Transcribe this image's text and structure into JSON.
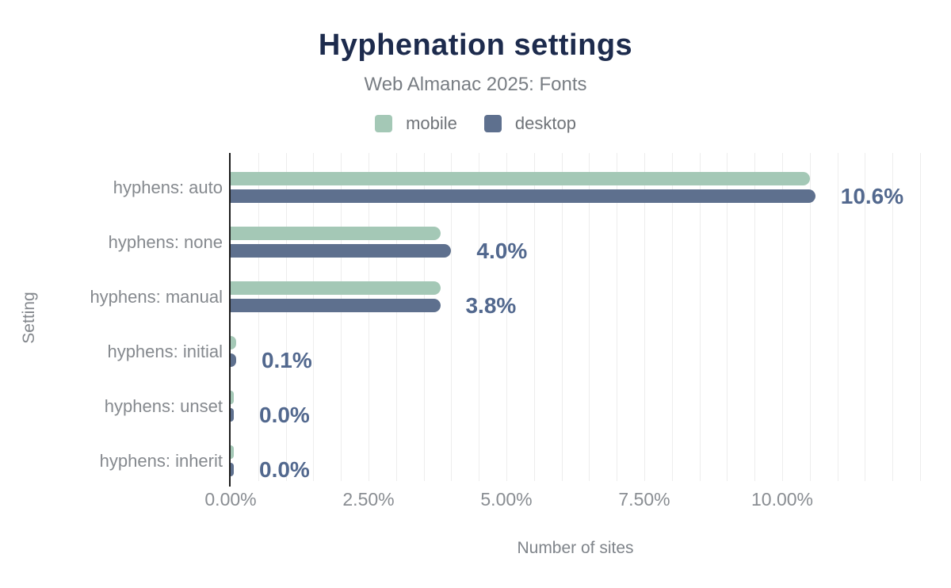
{
  "chart_data": {
    "type": "bar",
    "orientation": "horizontal",
    "title": "Hyphenation settings",
    "subtitle": "Web Almanac 2025: Fonts",
    "categories": [
      "hyphens: auto",
      "hyphens: none",
      "hyphens: manual",
      "hyphens: initial",
      "hyphens: unset",
      "hyphens: inherit"
    ],
    "series": [
      {
        "name": "mobile",
        "color": "#a4c8b6",
        "values": [
          10.5,
          3.8,
          3.8,
          0.1,
          0.0,
          0.0
        ]
      },
      {
        "name": "desktop",
        "color": "#5e708e",
        "values": [
          10.6,
          4.0,
          3.8,
          0.1,
          0.0,
          0.0
        ]
      }
    ],
    "data_labels": [
      "10.6%",
      "4.0%",
      "3.8%",
      "0.1%",
      "0.0%",
      "0.0%"
    ],
    "xlabel": "Number of sites",
    "ylabel": "Setting",
    "x_ticks": [
      "0.00%",
      "2.50%",
      "5.00%",
      "7.50%",
      "10.00%"
    ],
    "x_tick_values": [
      0,
      2.5,
      5,
      7.5,
      10
    ],
    "xlim": [
      0,
      12.5
    ],
    "gridline_step": 0.5,
    "grid": true,
    "legend_position": "top"
  },
  "colors": {
    "title": "#1d2b4d",
    "subtitle": "#787d83",
    "data_label": "#52688e",
    "axis_text": "#898d92",
    "gridline": "#ededed",
    "axis_line": "#1c1c1c",
    "background": "#ffffff"
  }
}
